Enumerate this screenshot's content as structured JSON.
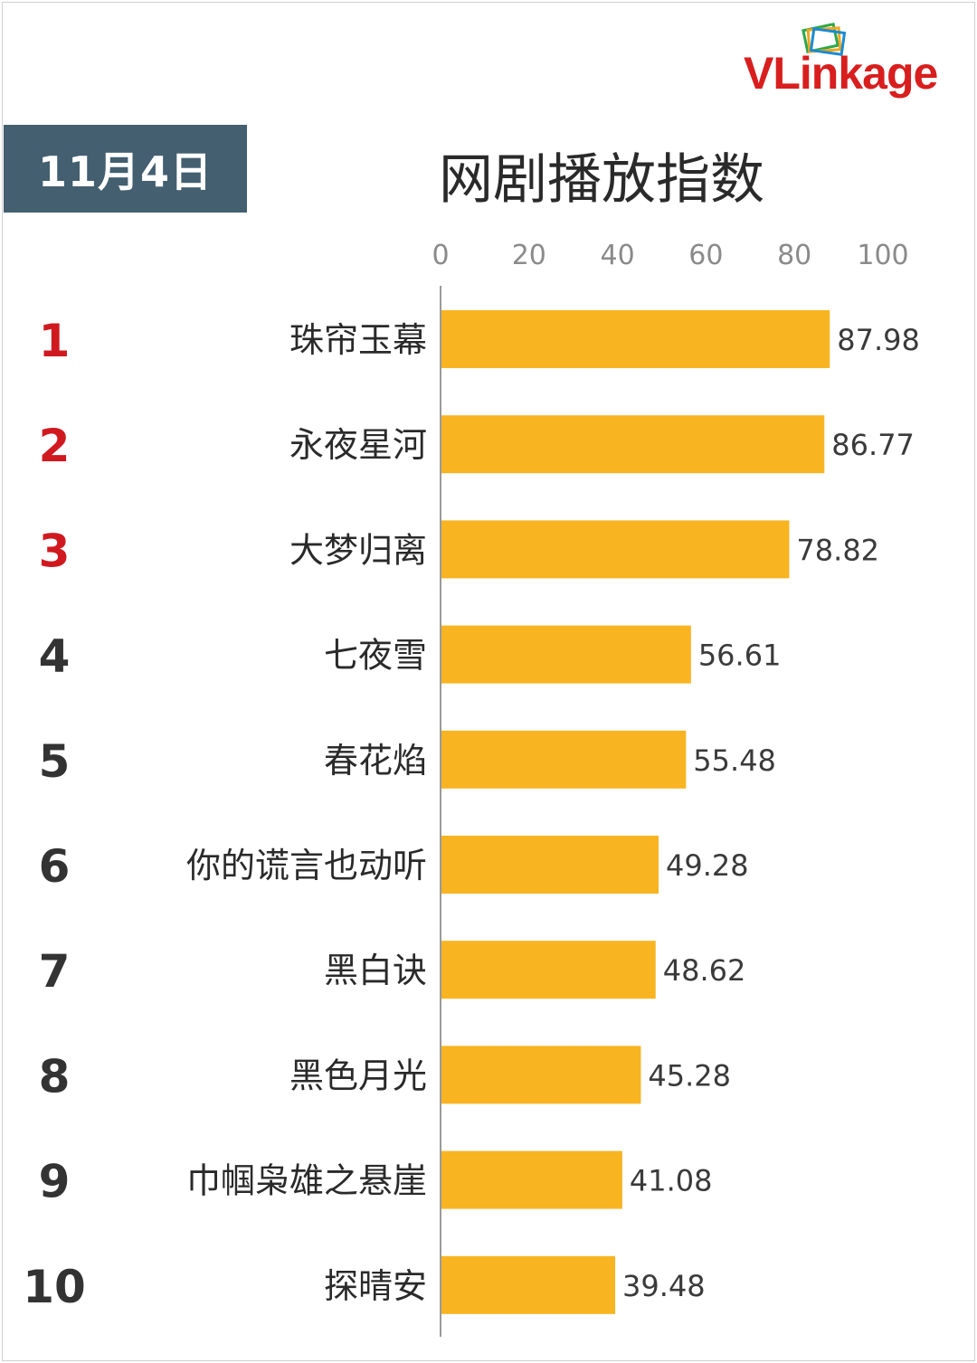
{
  "header": {
    "date": "11月4日",
    "title": "网剧播放指数",
    "brand": "VLinkage",
    "brand_color": "#d81e1e",
    "badge_color": "#445f6f"
  },
  "chart_data": {
    "type": "bar",
    "orientation": "horizontal",
    "title": "网剧播放指数",
    "xlim": [
      0,
      100
    ],
    "x_ticks": [
      "0",
      "20",
      "40",
      "60",
      "80",
      "100"
    ],
    "x_tick_values": [
      0,
      20,
      40,
      60,
      80,
      100
    ],
    "bar_color": "#f8b421",
    "grid": false,
    "ranks": [
      "1",
      "2",
      "3",
      "4",
      "5",
      "6",
      "7",
      "8",
      "9",
      "10"
    ],
    "rank_colors": [
      "#d0191f",
      "#d0191f",
      "#d0191f",
      "#333333",
      "#333333",
      "#333333",
      "#333333",
      "#333333",
      "#333333",
      "#333333"
    ],
    "categories": [
      "珠帘玉幕",
      "永夜星河",
      "大梦归离",
      "七夜雪",
      "春花焰",
      "你的谎言也动听",
      "黑白诀",
      "黑色月光",
      "巾帼枭雄之悬崖",
      "探晴安"
    ],
    "values": [
      87.98,
      86.77,
      78.82,
      56.61,
      55.48,
      49.28,
      48.62,
      45.28,
      41.08,
      39.48
    ],
    "value_labels": [
      "87.98",
      "86.77",
      "78.82",
      "56.61",
      "55.48",
      "49.28",
      "48.62",
      "45.28",
      "41.08",
      "39.48"
    ]
  }
}
